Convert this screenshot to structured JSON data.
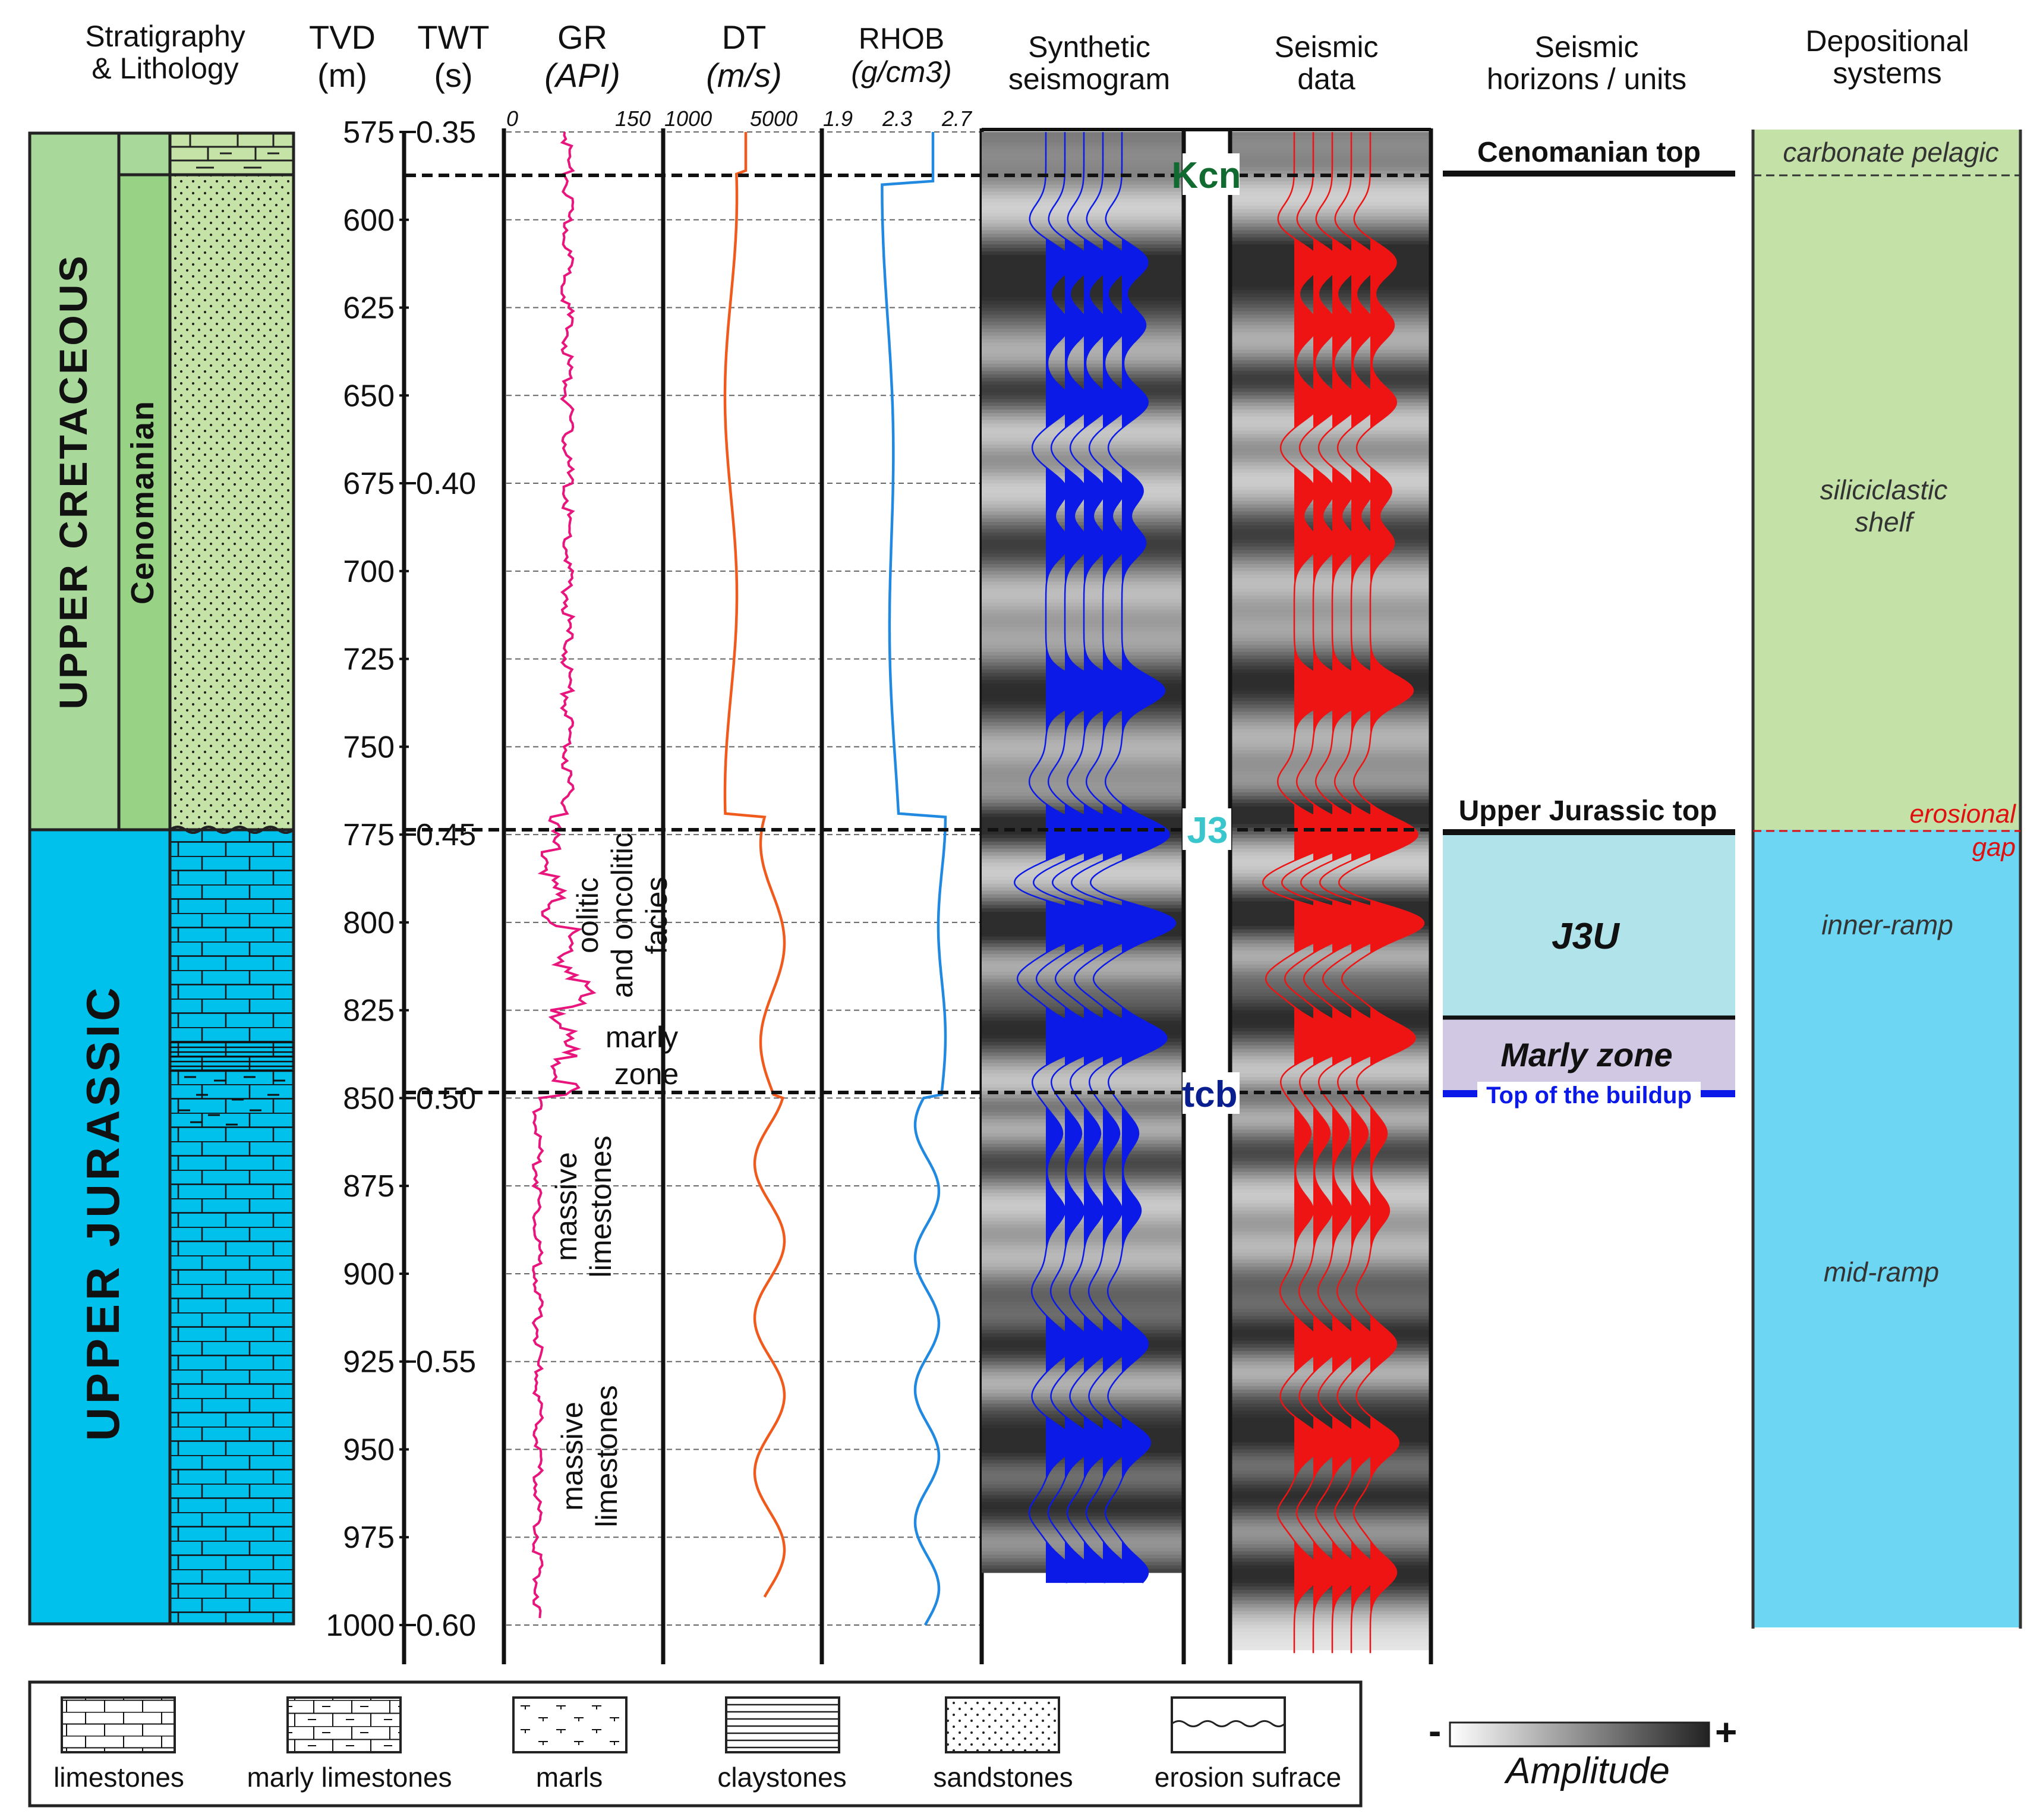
{
  "headers": {
    "strat": [
      "Stratigraphy",
      "& Lithology"
    ],
    "tvd": [
      "TVD",
      "(m)"
    ],
    "twt": [
      "TWT",
      "(s)"
    ],
    "gr": [
      "GR",
      "(API)"
    ],
    "dt": [
      "DT",
      "(m/s)"
    ],
    "rhob": [
      "RHOB",
      "(g/cm3)"
    ],
    "synthetic": [
      "Synthetic",
      "seismogram"
    ],
    "seismic": [
      "Seismic",
      "data"
    ],
    "horizons": [
      "Seismic",
      "horizons / units"
    ],
    "depo": [
      "Depositional",
      "systems"
    ]
  },
  "scales": {
    "gr": [
      "0",
      "150"
    ],
    "dt": [
      "1000",
      "5000"
    ],
    "rhob": [
      "1.9",
      "2.3",
      "2.7"
    ]
  },
  "depth": {
    "min": 575,
    "max": 1000,
    "tvd_ticks": [
      "575",
      "600",
      "625",
      "650",
      "675",
      "700",
      "725",
      "750",
      "775",
      "800",
      "825",
      "850",
      "875",
      "900",
      "925",
      "950",
      "975",
      "1000"
    ],
    "twt_ticks": [
      {
        "label": "0.35",
        "depth": 575
      },
      {
        "label": "0.40",
        "depth": 675
      },
      {
        "label": "0.45",
        "depth": 775
      },
      {
        "label": "0.50",
        "depth": 850
      },
      {
        "label": "0.55",
        "depth": 925
      },
      {
        "label": "0.60",
        "depth": 1000
      }
    ]
  },
  "stratigraphy": {
    "system_upper": "UPPER CRETACEOUS",
    "system_lower": "UPPER JURASSIC",
    "stage": "Cenomanian",
    "colors": {
      "cretaceous": "#a8d89a",
      "cenomanian": "#98d285",
      "lith_cret": "#c5e3a6",
      "jurassic": "#00c0ec"
    }
  },
  "log_annotations": {
    "oolitic": [
      "oolitic",
      "and oncolitic",
      "facies"
    ],
    "marly": [
      "marly",
      "zone"
    ],
    "massive1": [
      "massive",
      "limestones"
    ],
    "massive2": [
      "massive",
      "limestones"
    ]
  },
  "horizon_markers": [
    {
      "label": "Kcn",
      "depth": 587,
      "color": "#116b30"
    },
    {
      "label": "J3",
      "depth": 775,
      "color": "#39c6cc"
    },
    {
      "label": "tcb",
      "depth": 850,
      "color": "#0a1f8f"
    }
  ],
  "seismic_horizons": {
    "cenomanian_top": "Cenomanian top",
    "upper_jurassic_top": "Upper Jurassic top",
    "j3u": "J3U",
    "marly_zone": "Marly zone",
    "top_buildup": "Top of the buildup",
    "j3u_color": "#b0e4ea",
    "marly_color": "#d1c9e3",
    "buildup_color": "#0a18e8"
  },
  "depositional": {
    "carbonate": "carbonate pelagic",
    "siliciclastic": [
      "siliciclastic",
      "shelf"
    ],
    "erosional": [
      "erosional",
      "gap"
    ],
    "inner_ramp": "inner-ramp",
    "mid_ramp": "mid-ramp",
    "colors": {
      "upper": "#c4e2a8",
      "lower": "#6dd6f3",
      "erosion": "#e01010"
    }
  },
  "legend": {
    "items": [
      "limestones",
      "marly limestones",
      "marls",
      "claystones",
      "sandstones",
      "erosion sufrace"
    ]
  },
  "amplitude": {
    "label": "Amplitude",
    "minus": "-",
    "plus": "+"
  },
  "log_colors": {
    "gr": "#e8157c",
    "dt": "#f05a1c",
    "rhob": "#2189e0",
    "synthetic": "#0b1ae6",
    "seismic": "#ef1414"
  }
}
